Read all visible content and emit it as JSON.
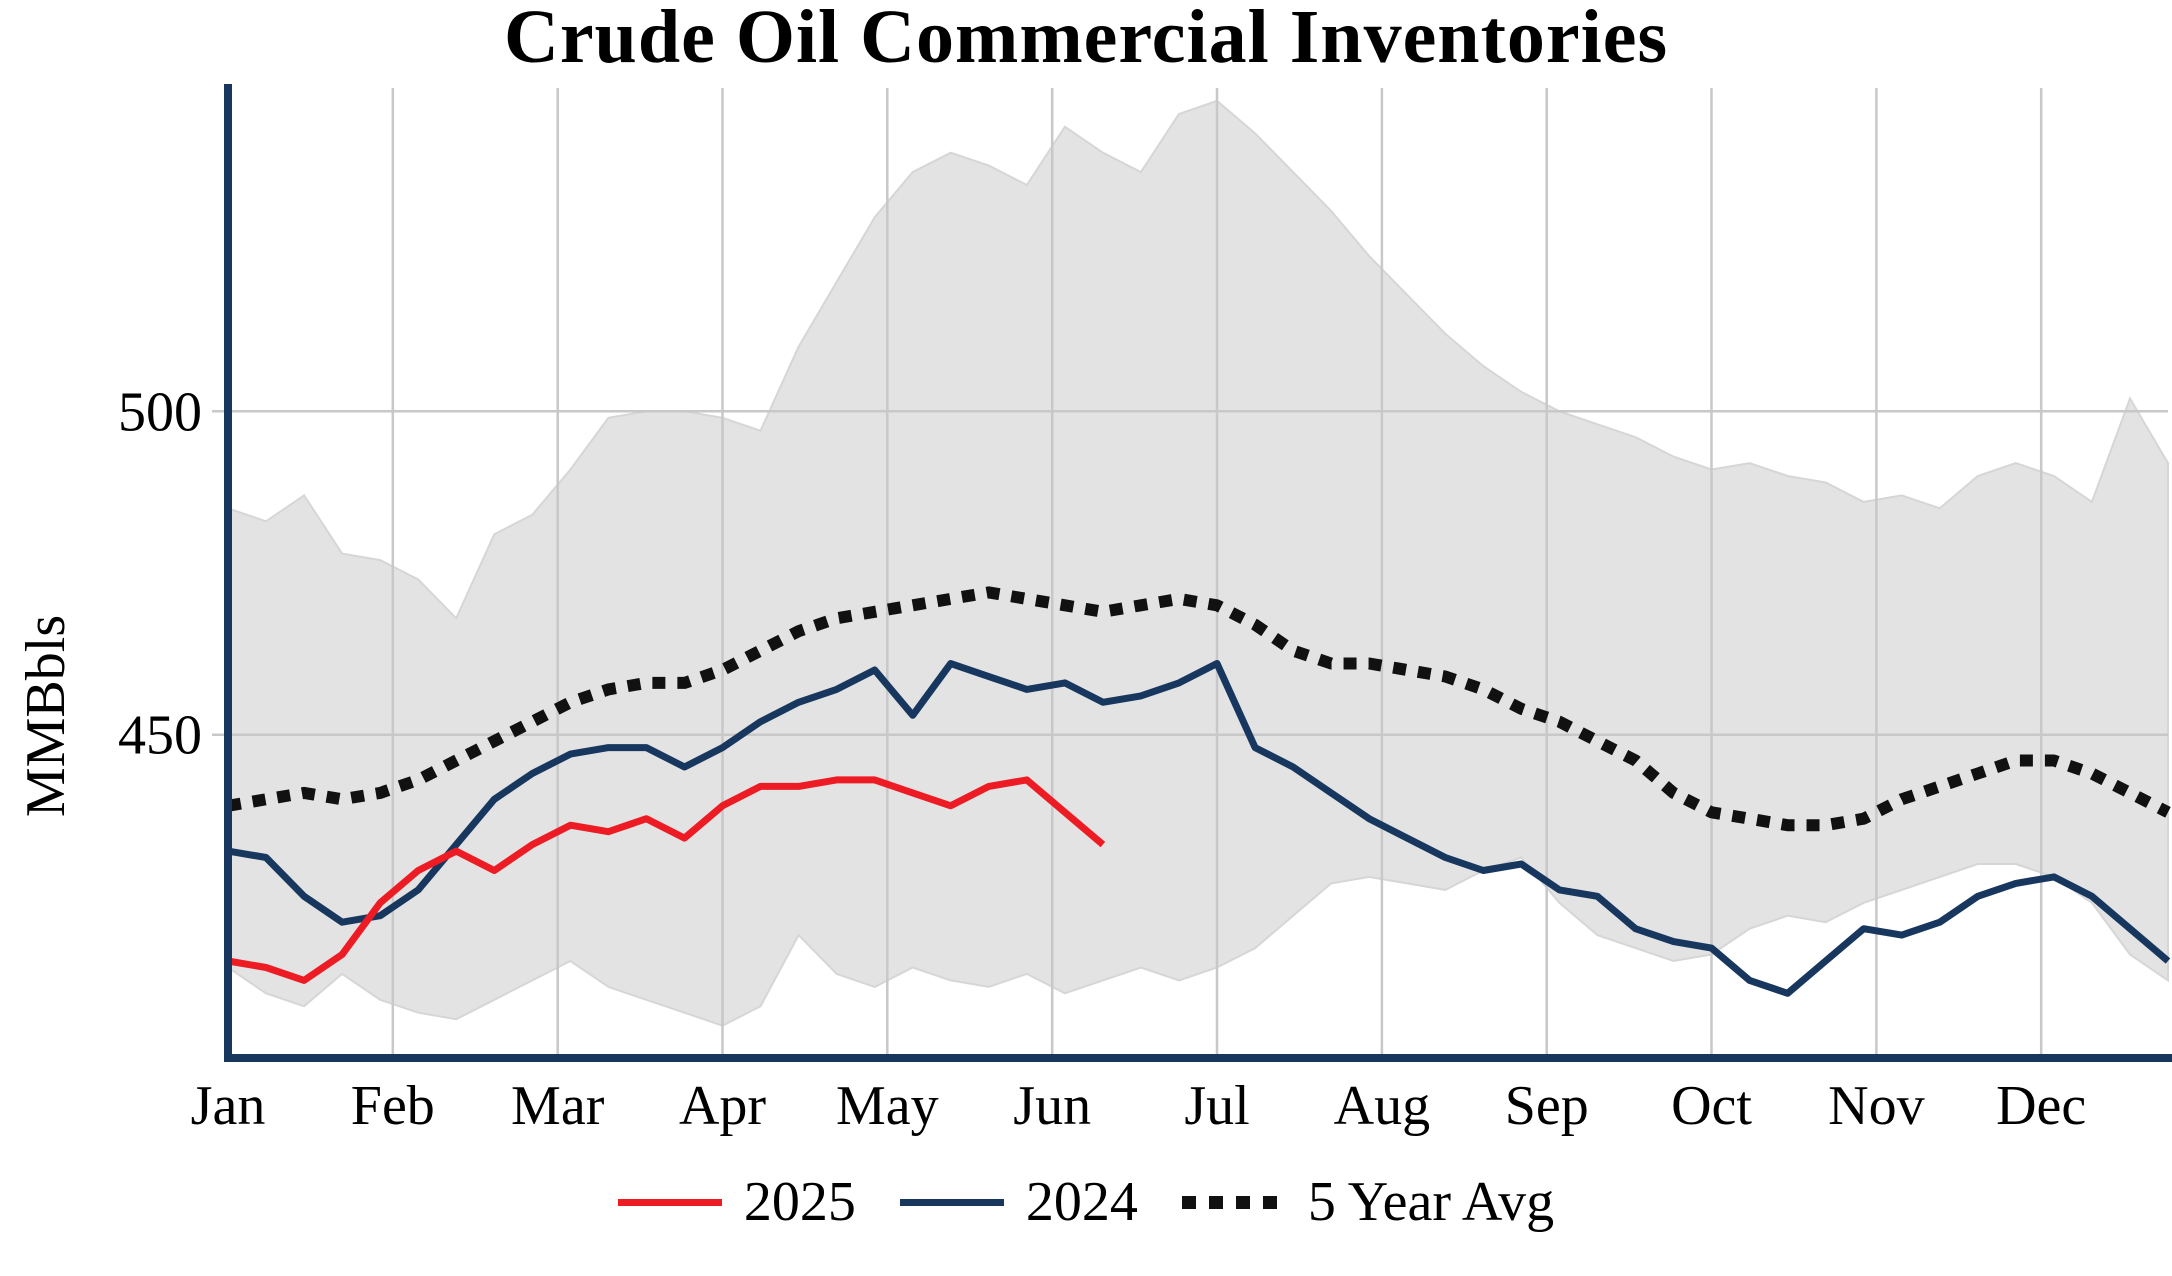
{
  "chart_data": {
    "type": "line",
    "title": "Crude Oil Commercial Inventories",
    "ylabel": "MMBbls",
    "xlabel": "",
    "ylim": [
      400,
      550
    ],
    "yticks": [
      450,
      500
    ],
    "x_categories": [
      "Jan",
      "Feb",
      "Mar",
      "Apr",
      "May",
      "Jun",
      "Jul",
      "Aug",
      "Sep",
      "Oct",
      "Nov",
      "Dec"
    ],
    "x_unit": "week",
    "n_points": 52,
    "grid": true,
    "legend_position": "bottom",
    "axis_color": "#17375e",
    "grid_color": "#c8c8c8",
    "band": {
      "name": "5 Year Range",
      "color": "#e3e3e3",
      "edge_color": "#d6d6d6",
      "max": [
        485,
        483,
        487,
        478,
        477,
        474,
        468,
        481,
        484,
        491,
        499,
        500,
        500,
        499,
        497,
        510,
        520,
        530,
        537,
        540,
        538,
        535,
        544,
        540,
        537,
        546,
        548,
        543,
        537,
        531,
        524,
        518,
        512,
        507,
        503,
        500,
        498,
        496,
        493,
        491,
        492,
        490,
        489,
        486,
        487,
        485,
        490,
        492,
        490,
        486,
        502,
        492
      ],
      "min": [
        414,
        410,
        408,
        413,
        409,
        407,
        406,
        409,
        412,
        415,
        411,
        409,
        407,
        405,
        408,
        419,
        413,
        411,
        414,
        412,
        411,
        413,
        410,
        412,
        414,
        412,
        414,
        417,
        422,
        427,
        428,
        427,
        426,
        429,
        431,
        424,
        419,
        417,
        415,
        416,
        420,
        422,
        421,
        424,
        426,
        428,
        430,
        430,
        428,
        424,
        416,
        412
      ]
    },
    "series": [
      {
        "name": "2025",
        "color": "#ed1c24",
        "style": "solid",
        "values": [
          415,
          414,
          412,
          416,
          424,
          429,
          432,
          429,
          433,
          436,
          435,
          437,
          434,
          439,
          442,
          442,
          443,
          443,
          441,
          439,
          442,
          443,
          438,
          433
        ]
      },
      {
        "name": "2024",
        "color": "#17375e",
        "style": "solid",
        "values": [
          432,
          431,
          425,
          421,
          422,
          426,
          433,
          440,
          444,
          447,
          448,
          448,
          445,
          448,
          452,
          455,
          457,
          460,
          453,
          461,
          459,
          457,
          458,
          455,
          456,
          458,
          461,
          448,
          445,
          441,
          437,
          434,
          431,
          429,
          430,
          426,
          425,
          420,
          418,
          417,
          412,
          410,
          415,
          420,
          419,
          421,
          425,
          427,
          428,
          425,
          420,
          415
        ]
      },
      {
        "name": "5 Year Avg",
        "color": "#111111",
        "style": "dotted",
        "values": [
          439,
          440,
          441,
          440,
          441,
          443,
          446,
          449,
          452,
          455,
          457,
          458,
          458,
          460,
          463,
          466,
          468,
          469,
          470,
          471,
          472,
          471,
          470,
          469,
          470,
          471,
          470,
          467,
          463,
          461,
          461,
          460,
          459,
          457,
          454,
          452,
          449,
          446,
          441,
          438,
          437,
          436,
          436,
          437,
          440,
          442,
          444,
          446,
          446,
          444,
          441,
          438
        ]
      }
    ]
  }
}
